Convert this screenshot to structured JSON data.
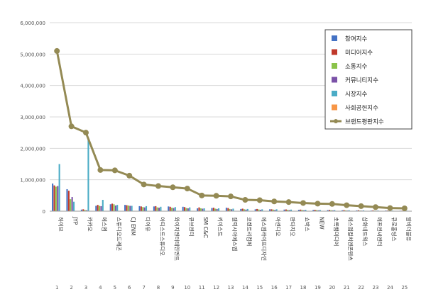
{
  "chart_data": {
    "type": "bar",
    "title": "",
    "xlabel": "",
    "ylabel": "",
    "ylim": [
      0,
      6000000
    ],
    "yticks": [
      "0",
      "1,000,000",
      "2,000,000",
      "3,000,000",
      "4,000,000",
      "5,000,000",
      "6,000,000"
    ],
    "grid": "horizontal",
    "legend_position": "top-right",
    "categories": [
      "하이브",
      "JYP",
      "카카오",
      "에스엠",
      "스튜디오드래곤",
      "CJ ENM",
      "디어유",
      "아티스트스튜디오",
      "와이지엔터테인먼트",
      "큐브엔터",
      "SM C&C",
      "키이스트",
      "갤럭시아에스엠",
      "코렌트리컴퍼",
      "에스엠라이프디자인",
      "아센디오",
      "판타지오",
      "쇼박스",
      "NEW",
      "초록뱀미디어",
      "에스엠컬처앤콘텐츠",
      "삼화네트웍스",
      "에프엔씨엔터",
      "큐로홀딩스",
      "알비더블유"
    ],
    "ranks": [
      "1",
      "2",
      "3",
      "4",
      "5",
      "6",
      "7",
      "8",
      "9",
      "10",
      "11",
      "12",
      "13",
      "14",
      "15",
      "16",
      "17",
      "18",
      "19",
      "20",
      "21",
      "22",
      "23",
      "24",
      "25"
    ],
    "series": [
      {
        "name": "참여지수",
        "color": "#4472c4",
        "values": [
          880000,
          700000,
          50000,
          170000,
          220000,
          200000,
          160000,
          150000,
          150000,
          140000,
          90000,
          100000,
          110000,
          70000,
          60000,
          60000,
          50000,
          45000,
          40000,
          35000,
          30000,
          25000,
          20000,
          20000,
          15000
        ]
      },
      {
        "name": "미디어지수",
        "color": "#c0392b",
        "values": [
          820000,
          650000,
          60000,
          200000,
          240000,
          190000,
          150000,
          160000,
          140000,
          130000,
          120000,
          110000,
          100000,
          80000,
          70000,
          60000,
          55000,
          50000,
          45000,
          40000,
          35000,
          30000,
          25000,
          20000,
          15000
        ]
      },
      {
        "name": "소통지수",
        "color": "#8bc34a",
        "values": [
          780000,
          380000,
          40000,
          170000,
          220000,
          180000,
          130000,
          120000,
          110000,
          100000,
          90000,
          80000,
          70000,
          60000,
          55000,
          50000,
          45000,
          40000,
          35000,
          30000,
          25000,
          20000,
          18000,
          15000,
          12000
        ]
      },
      {
        "name": "커뮤니티지수",
        "color": "#7b52a8",
        "values": [
          800000,
          450000,
          30000,
          160000,
          180000,
          170000,
          120000,
          110000,
          100000,
          90000,
          80000,
          70000,
          60000,
          50000,
          45000,
          40000,
          35000,
          30000,
          28000,
          25000,
          20000,
          18000,
          15000,
          12000,
          10000
        ]
      },
      {
        "name": "시장지수",
        "color": "#4bacc6",
        "values": [
          1500000,
          300000,
          2300000,
          360000,
          200000,
          170000,
          160000,
          140000,
          130000,
          120000,
          90000,
          90000,
          80000,
          70000,
          60000,
          60000,
          50000,
          45000,
          40000,
          35000,
          30000,
          25000,
          20000,
          18000,
          15000
        ]
      },
      {
        "name": "사회공헌지수",
        "color": "#f79646",
        "values": [
          0,
          0,
          0,
          0,
          0,
          0,
          0,
          0,
          0,
          0,
          0,
          0,
          0,
          0,
          0,
          0,
          0,
          0,
          0,
          0,
          0,
          0,
          0,
          0,
          0
        ]
      },
      {
        "name": "브랜드평판지수",
        "color": "#948a54",
        "type": "line",
        "values": [
          5100000,
          2700000,
          2500000,
          1310000,
          1300000,
          1130000,
          850000,
          800000,
          760000,
          720000,
          500000,
          490000,
          470000,
          360000,
          350000,
          310000,
          290000,
          260000,
          240000,
          230000,
          190000,
          160000,
          130000,
          100000,
          90000
        ]
      }
    ]
  }
}
